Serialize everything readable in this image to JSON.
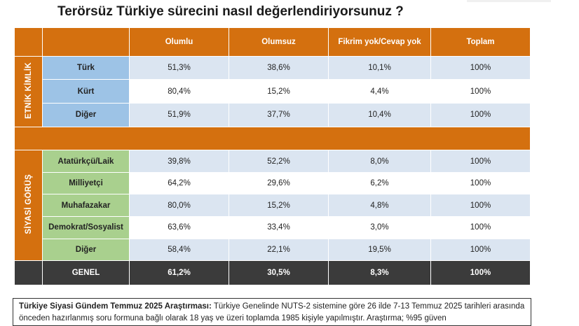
{
  "title": "Terörsüz Türkiye sürecini nasıl değerlendiriyorsunuz ?",
  "columns": [
    "Olumlu",
    "Olumsuz",
    "Fikrim yok/Cevap yok",
    "Toplam"
  ],
  "sections": [
    {
      "label": "ETNİK KİMLİK",
      "rows": [
        {
          "label": "Türk",
          "values": [
            "51,3%",
            "38,6%",
            "10,1%",
            "100%"
          ]
        },
        {
          "label": "Kürt",
          "values": [
            "80,4%",
            "15,2%",
            "4,4%",
            "100%"
          ]
        },
        {
          "label": "Diğer",
          "values": [
            "51,9%",
            "37,7%",
            "10,4%",
            "100%"
          ]
        }
      ]
    },
    {
      "label": "SİYASİ GÖRÜŞ",
      "rows": [
        {
          "label": "Atatürkçü/Laik",
          "values": [
            "39,8%",
            "52,2%",
            "8,0%",
            "100%"
          ]
        },
        {
          "label": "Milliyetçi",
          "values": [
            "64,2%",
            "29,6%",
            "6,2%",
            "100%"
          ]
        },
        {
          "label": "Muhafazakar",
          "values": [
            "80,0%",
            "15,2%",
            "4,8%",
            "100%"
          ]
        },
        {
          "label": "Demokrat/Sosyalist",
          "values": [
            "63,6%",
            "33,4%",
            "3,0%",
            "100%"
          ]
        },
        {
          "label": "Diğer",
          "values": [
            "58,4%",
            "22,1%",
            "19,5%",
            "100%"
          ]
        }
      ]
    }
  ],
  "total": {
    "label": "GENEL",
    "values": [
      "61,2%",
      "30,5%",
      "8,3%",
      "100%"
    ]
  },
  "note": {
    "bold": "Türkiye Siyasi Gündem Temmuz 2025 Araştırması:",
    "text": " Türkiye Genelinde  NUTS-2 sistemine göre 26 ilde 7-13 Temmuz 2025 tarihleri arasında önceden hazırlanmış soru formuna bağlı olarak 18 yaş ve üzeri toplamda 1985 kişiyle yapılmıştır. Araştırma; %95 güven"
  },
  "colors": {
    "orange": "#d4700f",
    "blue_label": "#9dc3e6",
    "green_label": "#a9d08e",
    "total_row": "#3b3b3b"
  }
}
